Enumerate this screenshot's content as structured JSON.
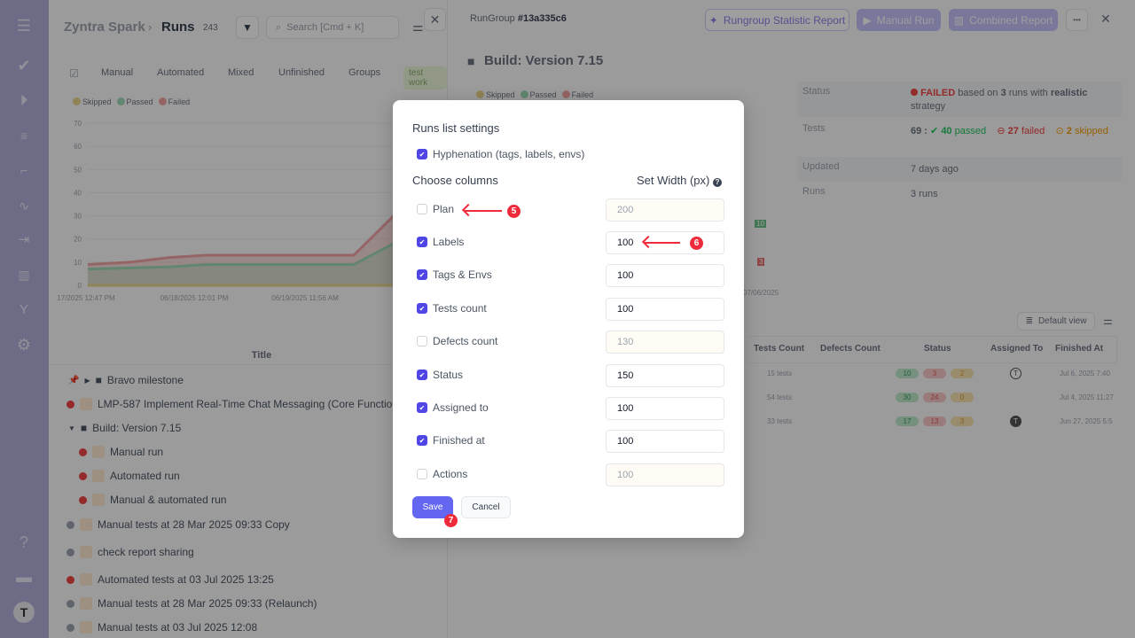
{
  "sidebar": {
    "icons": [
      "menu-icon",
      "check-icon",
      "play-circle-icon",
      "list-check-icon",
      "stairs-icon",
      "pulse-icon",
      "import-icon",
      "report-icon",
      "branch-icon",
      "gear-icon",
      "help-icon",
      "folders-icon",
      "avatar"
    ]
  },
  "left": {
    "breadcrumb_project": "Zyntra Spark",
    "breadcrumb_sep": "›",
    "page_title": "Runs",
    "count": "243",
    "search_placeholder": "Search [Cmd + K]",
    "tabs": [
      "Manual",
      "Automated",
      "Mixed",
      "Unfinished",
      "Groups",
      "test work"
    ],
    "legend": [
      "Skipped",
      "Passed",
      "Failed"
    ],
    "title_header": "Title",
    "rows": [
      {
        "text": "Bravo milestone",
        "type": "folder"
      },
      {
        "text": "LMP-587 Implement Real-Time Chat Messaging (Core Functionality)",
        "type": "failed"
      },
      {
        "text": "Build: Version 7.15",
        "type": "folder-open"
      },
      {
        "text": "Manual run",
        "type": "failed-child"
      },
      {
        "text": "Automated run",
        "type": "failed-child"
      },
      {
        "text": "Manual & automated run",
        "type": "failed-child"
      },
      {
        "text": "Manual tests at 28 Mar 2025 09:33 Copy",
        "type": "pending"
      },
      {
        "text": "check report sharing",
        "type": "pending"
      },
      {
        "text": "Automated tests at 03 Jul 2025 13:25",
        "type": "failed"
      },
      {
        "text": "Manual tests at 28 Mar 2025 09:33 (Relaunch)",
        "type": "pending"
      },
      {
        "text": "Manual tests at 03 Jul 2025 12:08",
        "type": "pending"
      }
    ]
  },
  "chart_data": {
    "type": "area",
    "y_ticks": [
      "0",
      "10",
      "20",
      "30",
      "40",
      "50",
      "60",
      "70"
    ],
    "ylim": [
      0,
      70
    ],
    "x_ticks": [
      "17/2025 12:47 PM",
      "06/18/2025 12:01 PM",
      "06/19/2025 11:56 AM",
      "06"
    ],
    "series": [
      {
        "name": "Failed",
        "color": "#f0a3a3",
        "values": [
          9,
          10,
          12,
          13,
          13,
          13,
          13,
          30
        ]
      },
      {
        "name": "Passed",
        "color": "#9fd8b4",
        "values": [
          7,
          7.5,
          8,
          9,
          9,
          9,
          9,
          18
        ]
      },
      {
        "name": "Skipped",
        "color": "#e8d48a",
        "values": [
          0,
          0,
          0,
          0,
          0,
          0,
          0,
          0
        ]
      }
    ]
  },
  "right": {
    "rungroup_label": "RunGroup",
    "rungroup_id": "#13a335c6",
    "stat_report": "Rungroup Statistic Report",
    "manual_run": "Manual Run",
    "combined_report": "Combined Report",
    "more": "•••",
    "title": "Build: Version 7.15",
    "legend": [
      "Skipped",
      "Passed",
      "Failed"
    ],
    "info": {
      "status_label": "Status",
      "status_value": "FAILED",
      "status_rest1": " based on ",
      "status_runs": "3",
      "status_rest2": " runs with ",
      "status_strategy": "realistic",
      "status_rest3": " strategy",
      "tests_label": "Tests",
      "tests_total": "69 :",
      "passed": "40",
      "passed_lbl": "passed",
      "failed": "27",
      "failed_lbl": "failed",
      "skipped": "2",
      "skipped_lbl": "skipped",
      "updated_label": "Updated",
      "updated_value": "7 days ago",
      "runs_label": "Runs",
      "runs_value": "3 runs"
    },
    "chart_labels": [
      "10",
      "3",
      "07/06/2025"
    ],
    "default_view": "Default view",
    "columns": [
      "Tests Count",
      "Defects Count",
      "Status",
      "Assigned To",
      "Finished At"
    ],
    "rows": [
      {
        "tests": "15 tests",
        "passed": "10",
        "failed": "3",
        "skipped": "2",
        "finished": "Jul 6, 2025 7:40"
      },
      {
        "tests": "54 tests",
        "passed": "30",
        "failed": "24",
        "skipped": "0",
        "finished": "Jul 4, 2025 11:27"
      },
      {
        "tests": "33 tests",
        "passed": "17",
        "failed": "13",
        "skipped": "3",
        "finished": "Jun 27, 2025 5:5"
      }
    ]
  },
  "modal": {
    "title": "Runs list settings",
    "hyphenation": "Hyphenation (tags, labels, envs)",
    "hyphenation_checked": true,
    "choose_columns": "Choose columns",
    "set_width": "Set Width (px)",
    "columns": [
      {
        "label": "Plan",
        "checked": false,
        "width": "200"
      },
      {
        "label": "Labels",
        "checked": true,
        "width": "100"
      },
      {
        "label": "Tags & Envs",
        "checked": true,
        "width": "100"
      },
      {
        "label": "Tests count",
        "checked": true,
        "width": "100"
      },
      {
        "label": "Defects count",
        "checked": false,
        "width": "130"
      },
      {
        "label": "Status",
        "checked": true,
        "width": "150"
      },
      {
        "label": "Assigned to",
        "checked": true,
        "width": "100"
      },
      {
        "label": "Finished at",
        "checked": true,
        "width": "100"
      },
      {
        "label": "Actions",
        "checked": false,
        "width": "100"
      }
    ],
    "save": "Save",
    "cancel": "Cancel"
  },
  "annotations": [
    "5",
    "6",
    "7"
  ],
  "colors": {
    "accent": "#4f46e5",
    "failed": "#ef4444",
    "passed": "#22c55e",
    "skipped": "#f59e0b",
    "annotation": "#ef2b3b"
  }
}
